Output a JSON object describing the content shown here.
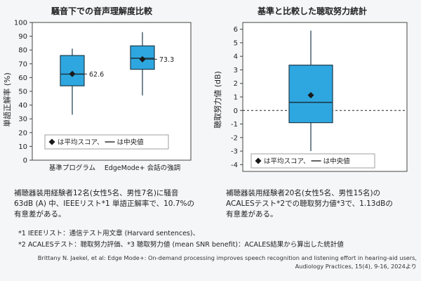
{
  "chart_data": [
    {
      "type": "box",
      "title": "騒音下での音声理解度比較",
      "ylabel": "単語正解率 (%)",
      "ylim": [
        0,
        100
      ],
      "yticks": [
        0,
        10,
        20,
        30,
        40,
        50,
        60,
        70,
        80,
        90,
        100
      ],
      "categories": [
        "基準プログラム",
        "EdgeMode+ 会話の強調"
      ],
      "boxes": [
        {
          "min": 33,
          "q1": 54,
          "median": 62.5,
          "q3": 76,
          "max": 81,
          "mean": 62.6,
          "mean_label": "62.6"
        },
        {
          "min": 47,
          "q1": 66,
          "median": 74,
          "q3": 83,
          "max": 93,
          "mean": 73.3,
          "mean_label": "73.3"
        }
      ],
      "legend": {
        "mean_text": "は平均スコア、",
        "median_text": "は中央値"
      }
    },
    {
      "type": "box",
      "title": "基準と比較した聴取努力統計",
      "ylabel": "聴取努力値 (dB)",
      "ylim": [
        -4.5,
        6.5
      ],
      "yticks": [
        -4,
        -3,
        -2,
        -1,
        0,
        1,
        2,
        3,
        4,
        5,
        6
      ],
      "reference_line": 0,
      "boxes": [
        {
          "min": -3,
          "q1": -0.9,
          "median": 0.6,
          "q3": 3.35,
          "max": 5.9,
          "mean": 1.13
        }
      ],
      "legend": {
        "mean_text": "は平均スコア、",
        "median_text": "は中央値"
      }
    }
  ],
  "captions": {
    "left": [
      "補聴器装用経験者12名(女性5名、男性7名)に騒音",
      "63dB (A) 中、IEEEリスト*1 単語正解率で、10.7%の",
      "有意差がある。"
    ],
    "right": [
      "補聴器装用経験者20名(女性5名、男性15名)の",
      "ACALESテスト*2での聴取努力値*3で、1.13dBの",
      "有意差がある。"
    ]
  },
  "notes": [
    "*1 IEEEリスト：通信テスト用文章 (Harvard sentences)、",
    "*2 ACALESテスト：聴取努力評価、*3 聴取努力値 (mean SNR benefit)：ACALES結果から算出した統計値"
  ],
  "citation": [
    "Brittany N. Jaekel, et al: Edge Mode+: On-demand processing improves speech recognition and listening effort in hearing-aid users,",
    "Audiology Practices, 15(4), 9-16, 2024より"
  ],
  "colors": {
    "box_fill": "#2ea7e0",
    "box_stroke": "#1b3a4b",
    "marker": "#1a1a1a"
  }
}
